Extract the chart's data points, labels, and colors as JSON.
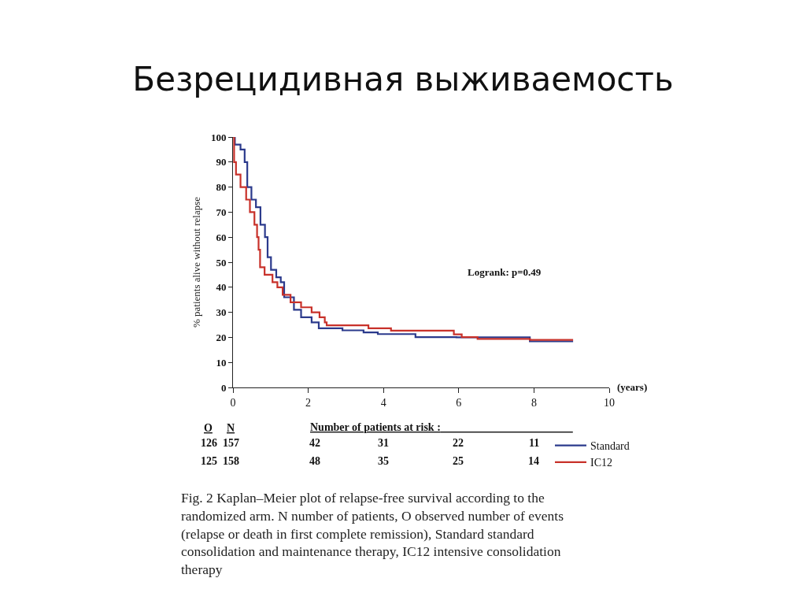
{
  "chart_data": {
    "type": "step",
    "title": "Безрецидивная выживаемость",
    "xlabel": "(years)",
    "ylabel": "% patients alive without relapse",
    "xlim": [
      0,
      10
    ],
    "xticks": [
      0,
      2,
      4,
      6,
      8,
      10
    ],
    "ylim": [
      0,
      100
    ],
    "yticks": [
      0,
      10,
      20,
      30,
      40,
      50,
      60,
      70,
      80,
      90,
      100
    ],
    "grid": false,
    "legend": "bottom right",
    "series": [
      {
        "name": "Standard",
        "color": "#2b3a8c",
        "x": [
          0,
          0.05,
          0.2,
          0.31,
          0.38,
          0.49,
          0.61,
          0.73,
          0.85,
          0.92,
          1.01,
          1.15,
          1.27,
          1.36,
          1.62,
          1.81,
          2.09,
          2.28,
          2.91,
          3.47,
          3.85,
          4.85,
          5.94,
          7.89,
          9.04
        ],
        "values": [
          100,
          97,
          95,
          90,
          80,
          75,
          72,
          65,
          60,
          52,
          47,
          44,
          42,
          36,
          31,
          28,
          26,
          23.6,
          22.8,
          22,
          21.3,
          20.1,
          20,
          18.4,
          18.4
        ]
      },
      {
        "name": "IC12",
        "color": "#c8312a",
        "x": [
          0,
          0.03,
          0.08,
          0.2,
          0.35,
          0.45,
          0.57,
          0.64,
          0.68,
          0.72,
          0.84,
          1.05,
          1.18,
          1.32,
          1.53,
          1.81,
          2.09,
          2.3,
          2.44,
          2.49,
          3.6,
          4.2,
          5.87,
          6.08,
          6.5,
          7.89,
          9.04
        ],
        "values": [
          100,
          90,
          85,
          80,
          75,
          70,
          65,
          60,
          55,
          48,
          45,
          42,
          40,
          37,
          34,
          32,
          30,
          28,
          26,
          24.8,
          23.6,
          22.7,
          21.2,
          20.1,
          19.4,
          19,
          19
        ]
      }
    ],
    "annotations": [
      "Logrank: p=0.49",
      "O",
      "N",
      "Number of patients at risk :",
      "126",
      "157",
      "42",
      "31",
      "22",
      "11",
      "125",
      "158",
      "48",
      "35",
      "25",
      "14",
      "Fig. 2 Kaplan–Meier plot of relapse-free survival according to the randomized arm. N number of patients, O observed number of events (relapse or death in first complete remission), Standard standard consolidation and maintenance therapy, IC12 intensive consolidation therapy"
    ]
  }
}
